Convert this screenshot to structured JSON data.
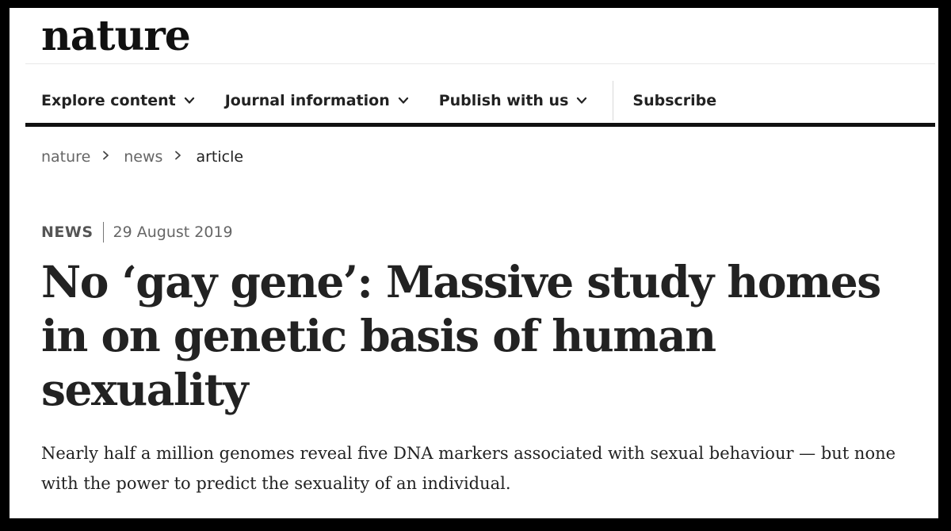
{
  "site": {
    "logo": "nature"
  },
  "nav": {
    "items": [
      {
        "label": "Explore content",
        "has_dropdown": true
      },
      {
        "label": "Journal information",
        "has_dropdown": true
      },
      {
        "label": "Publish with us",
        "has_dropdown": true
      }
    ],
    "subscribe_label": "Subscribe"
  },
  "breadcrumb": {
    "items": [
      "nature",
      "news",
      "article"
    ]
  },
  "article": {
    "type": "NEWS",
    "date": "29 August 2019",
    "headline": "No ‘gay gene’: Massive study homes in on genetic basis of human sexuality",
    "standfirst": "Nearly half a million genomes reveal five DNA markers associated with sexual behaviour — but none with the power to predict the sexuality of an individual."
  },
  "icons": {
    "dropdown": "chevron-down-icon",
    "breadcrumb_separator": "chevron-right-icon"
  },
  "colors": {
    "text": "#222222",
    "muted": "#666666",
    "rule": "#111111",
    "frame": "#000000"
  }
}
